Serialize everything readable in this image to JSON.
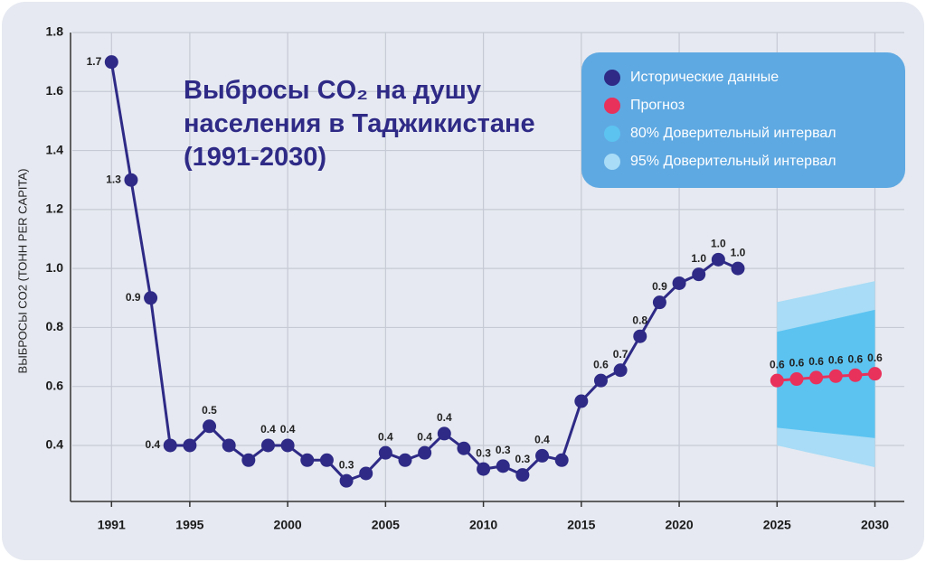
{
  "chart_data": {
    "type": "line",
    "title": "Выбросы CO₂ на душу населения в Таджикистане (1991-2030)",
    "y_label": "ВЫБРОСЫ CO2 (ТОНН PER CAPITA)",
    "xlim": [
      1989,
      2031.5
    ],
    "xticks": [
      1991,
      1995,
      2000,
      2005,
      2010,
      2015,
      2020,
      2025,
      2030
    ],
    "ylim": [
      0.21,
      1.8
    ],
    "yticks": [
      0.4,
      0.6,
      0.8,
      {
        "value": 1,
        "label": "1.0"
      },
      1.2,
      1.4,
      1.6,
      1.8
    ],
    "grid": true,
    "legend": "top-right",
    "series": [
      {
        "name": "Исторические данные",
        "color": "#2e2a86",
        "x": [
          1991,
          1992,
          1993,
          1994,
          1995,
          1996,
          1997,
          1998,
          1999,
          2000,
          2001,
          2002,
          2003,
          2004,
          2005,
          2006,
          2007,
          2008,
          2009,
          2010,
          2011,
          2012,
          2013,
          2014,
          2015,
          2016,
          2017,
          2018,
          2019,
          2020,
          2021,
          2022,
          2023
        ],
        "values": [
          1.7,
          1.3,
          0.9,
          0.4,
          0.4,
          0.465,
          0.4,
          0.35,
          0.4,
          0.4,
          0.35,
          0.35,
          0.28,
          0.305,
          0.375,
          0.35,
          0.375,
          0.44,
          0.39,
          0.32,
          0.33,
          0.3,
          0.365,
          0.35,
          0.55,
          0.62,
          0.655,
          0.77,
          0.885,
          0.95,
          0.98,
          1.03,
          1.0
        ],
        "value_labels": [
          "1.7",
          "1.3",
          "0.9",
          "0.4",
          null,
          "0.5",
          null,
          null,
          "0.4",
          "0.4",
          null,
          null,
          "0.3",
          null,
          "0.4",
          null,
          "0.4",
          "0.4",
          null,
          "0.3",
          "0.3",
          "0.3",
          "0.4",
          null,
          null,
          "0.6",
          "0.7",
          "0.8",
          "0.9",
          null,
          "1.0",
          "1.0",
          "1.0"
        ]
      },
      {
        "name": "Прогноз",
        "color": "#e8315b",
        "x": [
          2025,
          2026,
          2027,
          2028,
          2029,
          2030
        ],
        "values": [
          0.62,
          0.625,
          0.63,
          0.635,
          0.638,
          0.643
        ],
        "value_labels": [
          "0.6",
          "0.6",
          "0.6",
          "0.6",
          "0.6",
          "0.6"
        ]
      }
    ],
    "bands": [
      {
        "name": "80% Доверительный интервал",
        "color": "#5cc3f0",
        "lower": [
          0.46,
          0.453,
          0.446,
          0.439,
          0.432,
          0.425
        ],
        "upper": [
          0.785,
          0.8,
          0.815,
          0.83,
          0.845,
          0.86
        ]
      },
      {
        "name": "95% Доверительный интервал",
        "color": "#a9dcf6",
        "lower": [
          0.4,
          0.385,
          0.37,
          0.356,
          0.341,
          0.326
        ],
        "upper": [
          0.886,
          0.9,
          0.914,
          0.929,
          0.943,
          0.957
        ]
      }
    ]
  }
}
